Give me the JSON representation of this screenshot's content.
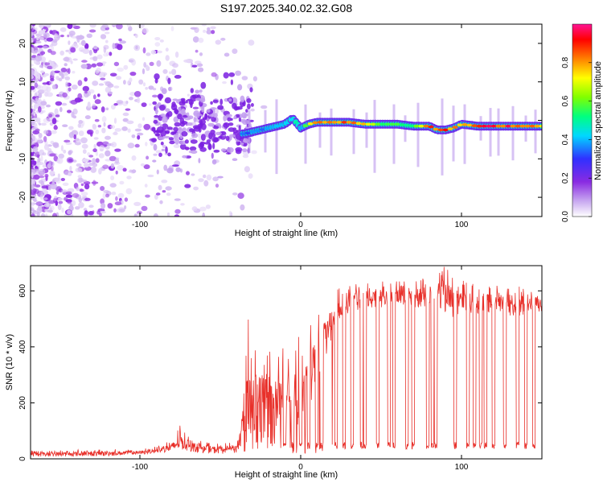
{
  "title": "S197.2025.340.02.32.G08",
  "chart_data": [
    {
      "type": "heatmap",
      "title": "S197.2025.340.02.32.G08",
      "xlabel": "Height of straight line (km)",
      "ylabel": "Frequency (Hz)",
      "xlim": [
        -168,
        150
      ],
      "ylim": [
        -25,
        25
      ],
      "xticks": [
        -100,
        0,
        100
      ],
      "yticks": [
        -20,
        -10,
        0,
        10,
        20
      ],
      "colorbar": {
        "label": "Normalized spectral amplitude",
        "range": [
          0,
          1
        ],
        "ticks": [
          "0.0",
          "0.2",
          "0.4",
          "0.6",
          "0.8"
        ],
        "colors": [
          "#ffffff",
          "#c8a8f0",
          "#8a2be2",
          "#3030ff",
          "#00d8ff",
          "#00ff80",
          "#80ff00",
          "#ffff00",
          "#ff8000",
          "#ff0000",
          "#ff1493"
        ]
      },
      "ridge": {
        "x": [
          -35,
          -20,
          -10,
          -5,
          0,
          5,
          10,
          20,
          30,
          40,
          50,
          60,
          70,
          80,
          85,
          90,
          95,
          100,
          110,
          120,
          130,
          140,
          148
        ],
        "frequency": [
          -3.5,
          -2,
          -1,
          0.5,
          -2,
          -1,
          -0.5,
          -0.5,
          -0.5,
          -1,
          -1,
          -1,
          -1.5,
          -1.5,
          -2.5,
          -2.5,
          -2,
          -1,
          -1.5,
          -1.5,
          -1.5,
          -1.5,
          -1.5
        ],
        "amplitude": [
          0.35,
          0.4,
          0.45,
          0.5,
          0.45,
          0.7,
          0.85,
          0.9,
          0.9,
          0.8,
          0.6,
          0.6,
          0.6,
          0.85,
          0.9,
          0.95,
          0.8,
          0.8,
          0.9,
          0.95,
          0.95,
          0.9,
          0.8
        ]
      }
    },
    {
      "type": "line",
      "xlabel": "Height of straight line (km)",
      "ylabel": "SNR (10 * v/v)",
      "xlim": [
        -168,
        150
      ],
      "ylim": [
        0,
        690
      ],
      "xticks": [
        -100,
        0,
        100
      ],
      "yticks": [
        0,
        200,
        400,
        600
      ],
      "color": "#e8302a",
      "envelope": {
        "x": [
          -168,
          -120,
          -100,
          -90,
          -80,
          -75,
          -70,
          -60,
          -50,
          -40,
          -35,
          -32,
          -30,
          -25,
          -20,
          -10,
          0,
          5,
          10,
          15,
          20,
          25,
          30,
          40,
          50,
          60,
          70,
          80,
          85,
          90,
          95,
          100,
          110,
          120,
          130,
          140,
          150
        ],
        "low": [
          8,
          10,
          15,
          20,
          25,
          35,
          25,
          20,
          18,
          20,
          25,
          60,
          50,
          60,
          70,
          90,
          100,
          150,
          280,
          350,
          400,
          500,
          520,
          540,
          540,
          550,
          540,
          540,
          550,
          520,
          500,
          500,
          520,
          520,
          510,
          510,
          520
        ],
        "high": [
          30,
          35,
          35,
          45,
          70,
          120,
          80,
          60,
          55,
          60,
          300,
          560,
          450,
          420,
          400,
          420,
          440,
          480,
          500,
          560,
          600,
          620,
          630,
          640,
          640,
          640,
          640,
          650,
          670,
          690,
          650,
          640,
          620,
          620,
          620,
          620,
          600
        ]
      },
      "dropout_x": [
        -10,
        -5,
        0,
        5,
        10,
        13,
        22,
        27,
        32,
        38,
        40,
        48,
        55,
        58,
        66,
        70,
        79,
        82,
        84,
        96,
        104,
        108,
        112,
        115,
        120,
        127,
        135,
        140,
        145
      ],
      "dropout_level": 35
    }
  ]
}
